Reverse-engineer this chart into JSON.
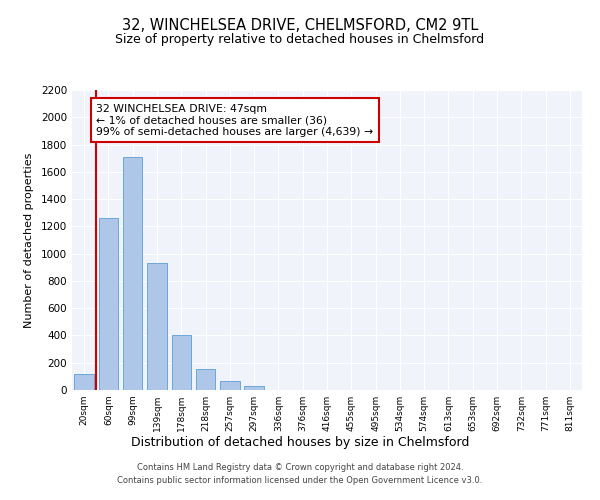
{
  "title": "32, WINCHELSEA DRIVE, CHELMSFORD, CM2 9TL",
  "subtitle": "Size of property relative to detached houses in Chelmsford",
  "xlabel": "Distribution of detached houses by size in Chelmsford",
  "ylabel": "Number of detached properties",
  "bar_color": "#aec6e8",
  "bar_edge_color": "#5a9fd4",
  "highlight_color": "#cc0000",
  "background_color": "#f0f4fa",
  "grid_color": "#ffffff",
  "categories": [
    "20sqm",
    "60sqm",
    "99sqm",
    "139sqm",
    "178sqm",
    "218sqm",
    "257sqm",
    "297sqm",
    "336sqm",
    "376sqm",
    "416sqm",
    "455sqm",
    "495sqm",
    "534sqm",
    "574sqm",
    "613sqm",
    "653sqm",
    "692sqm",
    "732sqm",
    "771sqm",
    "811sqm"
  ],
  "values": [
    120,
    1260,
    1710,
    935,
    405,
    155,
    68,
    30,
    0,
    0,
    0,
    0,
    0,
    0,
    0,
    0,
    0,
    0,
    0,
    0,
    0
  ],
  "annotation_text": "32 WINCHELSEA DRIVE: 47sqm\n← 1% of detached houses are smaller (36)\n99% of semi-detached houses are larger (4,639) →",
  "annotation_box_color": "#ffffff",
  "annotation_box_edge": "#cc0000",
  "ylim": [
    0,
    2200
  ],
  "yticks": [
    0,
    200,
    400,
    600,
    800,
    1000,
    1200,
    1400,
    1600,
    1800,
    2000,
    2200
  ],
  "footer1": "Contains HM Land Registry data © Crown copyright and database right 2024.",
  "footer2": "Contains public sector information licensed under the Open Government Licence v3.0.",
  "fig_width": 6.0,
  "fig_height": 5.0
}
